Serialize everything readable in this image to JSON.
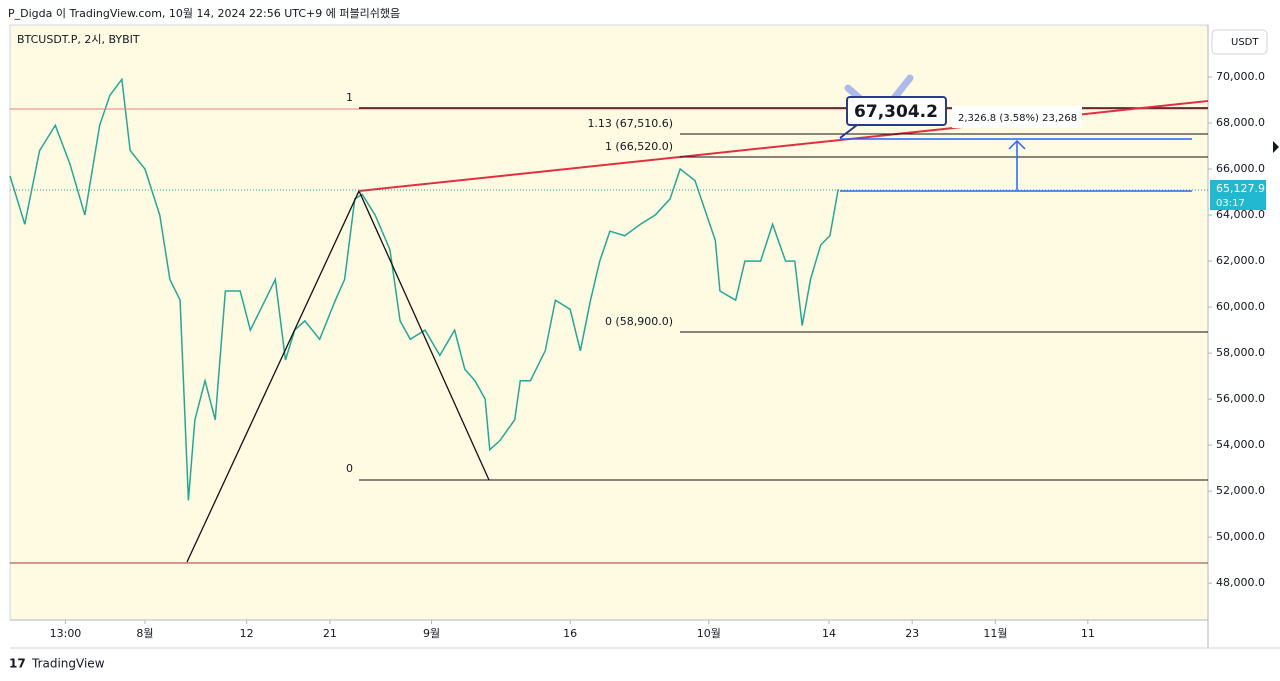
{
  "header": {
    "caption": "P_Digda 이 TradingView.com, 10월 14, 2024 22:56 UTC+9 에 퍼블리쉬했음",
    "symbol": "BTCUSDT.P, 2시, BYBIT",
    "currency": "USDT",
    "footer": "TradingView"
  },
  "annotations": {
    "fib_left_top": "1",
    "fib_left_bottom": "0",
    "fib_ext": "1.13 (67,510.6)",
    "fib_one": "1 (66,520.0)",
    "fib_zero": "0 (58,900.0)",
    "price_tag": "67,304.2",
    "measure": "2,326.8 (3.58%) 23,268",
    "last_price": "65,127.9",
    "countdown": "03:17"
  },
  "chart_data": {
    "type": "line",
    "color": "#26a69a",
    "x": [
      -14.6,
      -13.0,
      -11.4,
      -9.7,
      -8.1,
      -6.5,
      -4.9,
      -3.8,
      -2.5,
      -1.6,
      0,
      1.6,
      2.7,
      3.8,
      4.7,
      5.4,
      6.5,
      7.6,
      8.7,
      10.3,
      11.4,
      13.0,
      14.1,
      15.2,
      16.2,
      17.3,
      18.9,
      20.6,
      21.6,
      22.7,
      23.5,
      24.9,
      26.5,
      27.6,
      28.7,
      30.3,
      31.9,
      33.5,
      34.6,
      35.7,
      36.8,
      37.3,
      38.4,
      40.0,
      40.6,
      41.7,
      43.3,
      44.4,
      46.0,
      47.1,
      48.2,
      49.2,
      50.3,
      51.9,
      53.6,
      55.2,
      56.8,
      57.9,
      59.5,
      60.6,
      61.7,
      62.2,
      63.9,
      64.9,
      66.6,
      67.9,
      69.3,
      70.3,
      71.1,
      72.0,
      73.1,
      74.1,
      75.0
    ],
    "values": [
      65700,
      63600,
      66800,
      67900,
      66200,
      64000,
      67900,
      69200,
      69900,
      66800,
      66000,
      64000,
      61200,
      60300,
      51600,
      55100,
      56800,
      55100,
      60700,
      60700,
      59000,
      60300,
      61200,
      57700,
      59000,
      59400,
      58600,
      60300,
      61200,
      64700,
      64900,
      64000,
      62500,
      59400,
      58600,
      59000,
      57900,
      59000,
      57300,
      56800,
      56000,
      53800,
      54200,
      55100,
      56800,
      56800,
      58100,
      60300,
      59900,
      58100,
      60300,
      62000,
      63300,
      63100,
      63600,
      64000,
      64700,
      66000,
      65500,
      64200,
      62900,
      60700,
      60300,
      62000,
      62000,
      63600,
      62000,
      62000,
      59200,
      61200,
      62700,
      63100,
      65127.9
    ],
    "xlim": [
      -14.6,
      115.0
    ],
    "xticks": [
      {
        "value": -8.6,
        "label": "13:00"
      },
      {
        "value": 0,
        "label": "8월"
      },
      {
        "value": 11,
        "label": "12"
      },
      {
        "value": 20,
        "label": "21"
      },
      {
        "value": 31,
        "label": "9월"
      },
      {
        "value": 46,
        "label": "16"
      },
      {
        "value": 61,
        "label": "10월"
      },
      {
        "value": 74,
        "label": "14"
      },
      {
        "value": 83,
        "label": "23"
      },
      {
        "value": 92,
        "label": "11월"
      },
      {
        "value": 102,
        "label": "11"
      }
    ],
    "ylim": [
      46400,
      72260
    ],
    "yticks": [
      {
        "value": 48000,
        "label": "48,000.0"
      },
      {
        "value": 50000,
        "label": "50,000.0"
      },
      {
        "value": 52000,
        "label": "52,000.0"
      },
      {
        "value": 54000,
        "label": "54,000.0"
      },
      {
        "value": 56000,
        "label": "56,000.0"
      },
      {
        "value": 58000,
        "label": "58,000.0"
      },
      {
        "value": 60000,
        "label": "60,000.0"
      },
      {
        "value": 62000,
        "label": "62,000.0"
      },
      {
        "value": 64000,
        "label": "64,000.0"
      },
      {
        "value": 66000,
        "label": "66,000.0"
      },
      {
        "value": 68000,
        "label": "68,000.0"
      },
      {
        "value": 70000,
        "label": "70,000.0"
      }
    ]
  }
}
